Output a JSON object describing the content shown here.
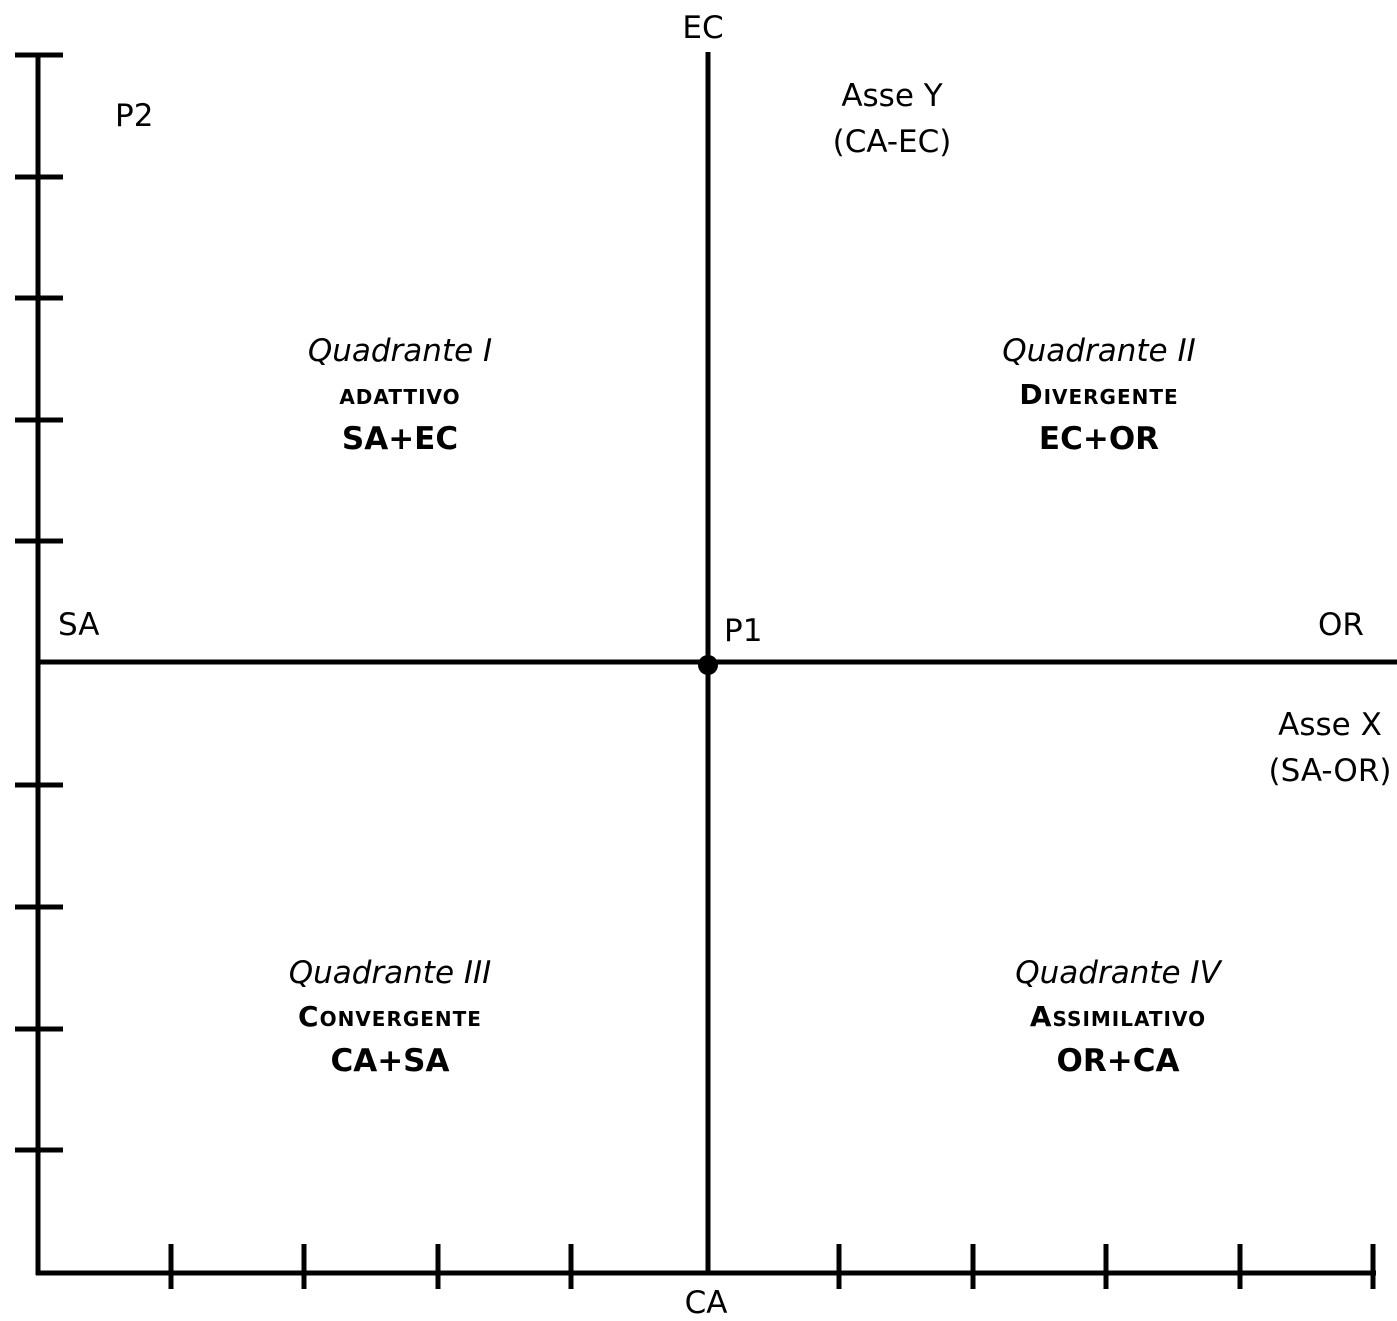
{
  "axes": {
    "top_label": "EC",
    "bottom_label": "CA",
    "left_label": "SA",
    "right_label": "OR",
    "y_axis_name": "Asse Y",
    "y_axis_range": "(CA-EC)",
    "x_axis_name": "Asse X",
    "x_axis_range": "(SA-OR)"
  },
  "points": {
    "p1": "P1",
    "p2": "P2"
  },
  "quadrants": [
    {
      "title": "Quadrante I",
      "name": "adattivo",
      "combo": "SA+EC"
    },
    {
      "title": "Quadrante II",
      "name": "Divergente",
      "combo": "EC+OR"
    },
    {
      "title": "Quadrante III",
      "name": "Convergente",
      "combo": "CA+SA"
    },
    {
      "title": "Quadrante IV",
      "name": "Assimilativo",
      "combo": "OR+CA"
    }
  ],
  "colors": {
    "line": "#000000",
    "background": "#ffffff"
  }
}
